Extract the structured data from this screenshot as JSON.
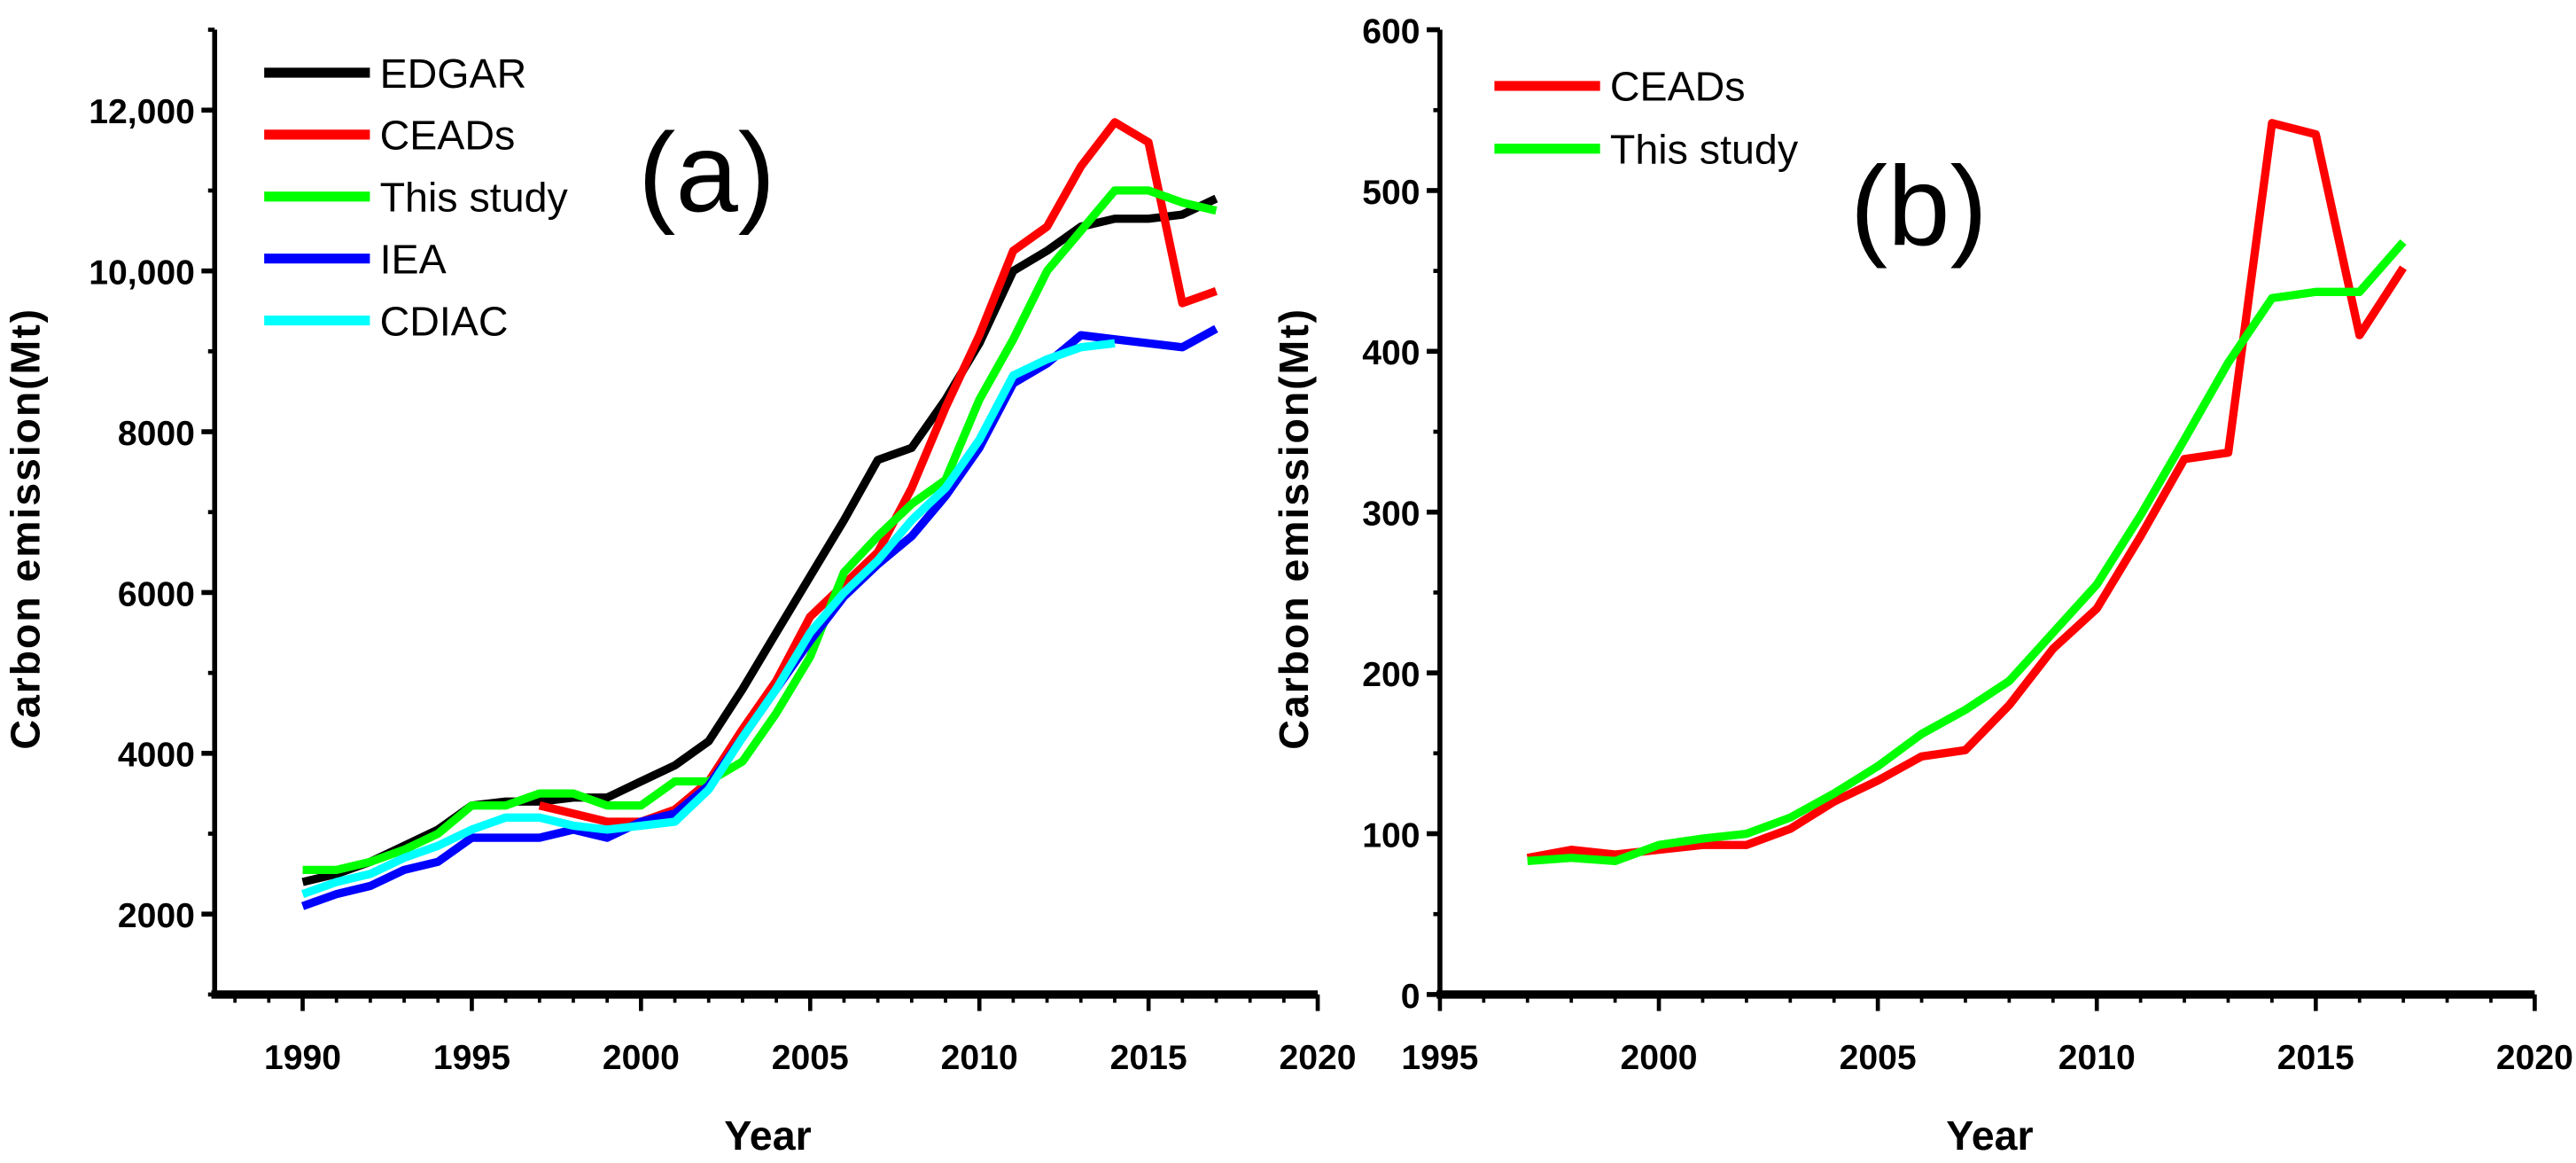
{
  "chart_data": [
    {
      "type": "line",
      "panel_label": "(a)",
      "xlabel": "Year",
      "ylabel": "Carbon emission(Mt)",
      "xlim": [
        1987.4,
        2020
      ],
      "ylim": [
        1000,
        13000
      ],
      "xticks": [
        1990,
        1995,
        2000,
        2005,
        2010,
        2015,
        2020
      ],
      "xtick_labels": [
        "1990",
        "1995",
        "2000",
        "2005",
        "2010",
        "2015",
        "2020"
      ],
      "yticks": [
        2000,
        4000,
        6000,
        8000,
        10000,
        12000
      ],
      "ytick_labels": [
        "2000",
        "4000",
        "6000",
        "8000",
        "10,000",
        "12,000"
      ],
      "grid": false,
      "legend_position": "top-left",
      "series": [
        {
          "name": "EDGAR",
          "color": "#000000",
          "x": [
            1990,
            1991,
            1992,
            1993,
            1994,
            1995,
            1996,
            1997,
            1998,
            1999,
            2000,
            2001,
            2002,
            2003,
            2004,
            2005,
            2006,
            2007,
            2008,
            2009,
            2010,
            2011,
            2012,
            2013,
            2014,
            2015,
            2016,
            2017
          ],
          "values": [
            2400,
            2500,
            2650,
            2850,
            3050,
            3350,
            3400,
            3400,
            3450,
            3450,
            3650,
            3850,
            4150,
            4800,
            5500,
            6200,
            6900,
            7650,
            7800,
            8400,
            9100,
            10000,
            10250,
            10550,
            10650,
            10650,
            10700,
            10900
          ]
        },
        {
          "name": "CEADs",
          "color": "#ff0000",
          "x": [
            1997,
            1998,
            1999,
            2000,
            2001,
            2002,
            2003,
            2004,
            2005,
            2006,
            2007,
            2008,
            2009,
            2010,
            2011,
            2012,
            2013,
            2014,
            2015,
            2016,
            2017
          ],
          "values": [
            3350,
            3250,
            3150,
            3150,
            3300,
            3650,
            4300,
            4900,
            5700,
            6100,
            6500,
            7300,
            8300,
            9200,
            10250,
            10550,
            11300,
            11850,
            11600,
            9600,
            9750
          ]
        },
        {
          "name": "This study",
          "color": "#00ff00",
          "x": [
            1990,
            1991,
            1992,
            1993,
            1994,
            1995,
            1996,
            1997,
            1998,
            1999,
            2000,
            2001,
            2002,
            2003,
            2004,
            2005,
            2006,
            2007,
            2008,
            2009,
            2010,
            2011,
            2012,
            2013,
            2014,
            2015,
            2016,
            2017
          ],
          "values": [
            2550,
            2550,
            2650,
            2800,
            3000,
            3350,
            3350,
            3500,
            3500,
            3350,
            3350,
            3650,
            3650,
            3900,
            4500,
            5200,
            6250,
            6700,
            7100,
            7400,
            8400,
            9150,
            10000,
            10500,
            11000,
            11000,
            10850,
            10750
          ]
        },
        {
          "name": "IEA",
          "color": "#0000ff",
          "x": [
            1990,
            1991,
            1992,
            1993,
            1994,
            1995,
            1996,
            1997,
            1998,
            1999,
            2000,
            2001,
            2002,
            2003,
            2004,
            2005,
            2006,
            2007,
            2008,
            2009,
            2010,
            2011,
            2012,
            2013,
            2014,
            2015,
            2016,
            2017
          ],
          "values": [
            2100,
            2250,
            2350,
            2550,
            2650,
            2950,
            2950,
            2950,
            3050,
            2950,
            3150,
            3250,
            3600,
            4200,
            4800,
            5400,
            5950,
            6350,
            6700,
            7200,
            7800,
            8600,
            8850,
            9200,
            9150,
            9100,
            9050,
            9280
          ]
        },
        {
          "name": "CDIAC",
          "color": "#00ffff",
          "x": [
            1990,
            1991,
            1992,
            1993,
            1994,
            1995,
            1996,
            1997,
            1998,
            1999,
            2000,
            2001,
            2002,
            2003,
            2004,
            2005,
            2006,
            2007,
            2008,
            2009,
            2010,
            2011,
            2012,
            2013,
            2014
          ],
          "values": [
            2250,
            2400,
            2500,
            2700,
            2850,
            3050,
            3200,
            3200,
            3100,
            3050,
            3100,
            3150,
            3550,
            4200,
            4800,
            5500,
            6000,
            6400,
            6900,
            7300,
            7900,
            8700,
            8900,
            9050,
            9100
          ]
        }
      ]
    },
    {
      "type": "line",
      "panel_label": "(b)",
      "xlabel": "Year",
      "ylabel": "Carbon emission(Mt)",
      "xlim": [
        1995,
        2020
      ],
      "ylim": [
        0,
        600
      ],
      "xticks": [
        1995,
        2000,
        2005,
        2010,
        2015,
        2020
      ],
      "xtick_labels": [
        "1995",
        "2000",
        "2005",
        "2010",
        "2015",
        "2020"
      ],
      "yticks": [
        0,
        100,
        200,
        300,
        400,
        500,
        600
      ],
      "ytick_labels": [
        "0",
        "100",
        "200",
        "300",
        "400",
        "500",
        "600"
      ],
      "grid": false,
      "legend_position": "top-left",
      "series": [
        {
          "name": "CEADs",
          "color": "#ff0000",
          "x": [
            1997,
            1998,
            1999,
            2000,
            2001,
            2002,
            2003,
            2004,
            2005,
            2006,
            2007,
            2008,
            2009,
            2010,
            2011,
            2012,
            2013,
            2014,
            2015,
            2016,
            2017
          ],
          "values": [
            85,
            90,
            87,
            90,
            93,
            93,
            103,
            120,
            133,
            148,
            152,
            180,
            215,
            240,
            285,
            333,
            337,
            542,
            535,
            410,
            452
          ]
        },
        {
          "name": "This study",
          "color": "#00ff00",
          "x": [
            1997,
            1998,
            1999,
            2000,
            2001,
            2002,
            2003,
            2004,
            2005,
            2006,
            2007,
            2008,
            2009,
            2010,
            2011,
            2012,
            2013,
            2014,
            2015,
            2016,
            2017
          ],
          "values": [
            83,
            85,
            83,
            93,
            97,
            100,
            110,
            125,
            142,
            162,
            177,
            195,
            225,
            255,
            298,
            345,
            393,
            433,
            437,
            437,
            468
          ]
        }
      ]
    }
  ]
}
